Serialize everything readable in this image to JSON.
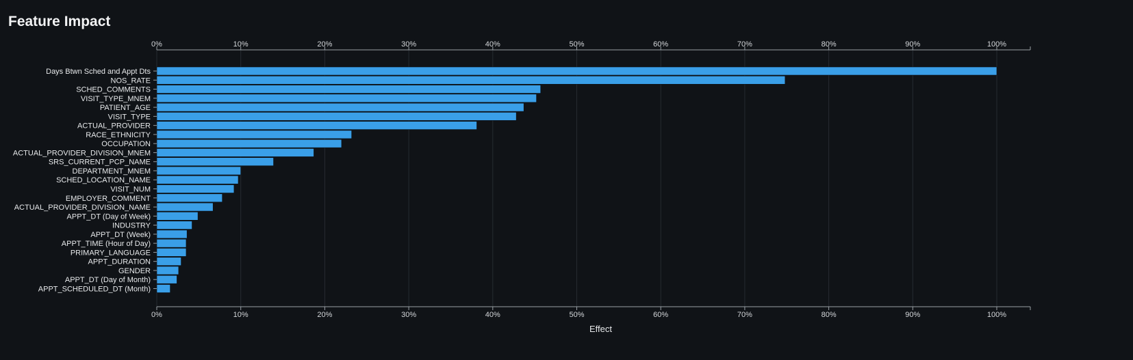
{
  "page": {
    "title": "Feature Impact"
  },
  "chart_data": {
    "type": "bar",
    "orientation": "horizontal",
    "xlabel": "Effect",
    "ylabel": "",
    "xlim": [
      0,
      1.0
    ],
    "xticks": [
      "0%",
      "10%",
      "20%",
      "30%",
      "40%",
      "50%",
      "60%",
      "70%",
      "80%",
      "90%",
      "100%"
    ],
    "grid": true,
    "colors": {
      "bar": "#3a9fe8",
      "background": "#101317"
    },
    "categories": [
      "Days Btwn Sched and Appt Dts",
      "NOS_RATE",
      "SCHED_COMMENTS",
      "VISIT_TYPE_MNEM",
      "PATIENT_AGE",
      "VISIT_TYPE",
      "ACTUAL_PROVIDER",
      "RACE_ETHNICITY",
      "OCCUPATION",
      "ACTUAL_PROVIDER_DIVISION_MNEM",
      "SRS_CURRENT_PCP_NAME",
      "DEPARTMENT_MNEM",
      "SCHED_LOCATION_NAME",
      "VISIT_NUM",
      "EMPLOYER_COMMENT",
      "ACTUAL_PROVIDER_DIVISION_NAME",
      "APPT_DT (Day of Week)",
      "INDUSTRY",
      "APPT_DT (Week)",
      "APPT_TIME (Hour of Day)",
      "PRIMARY_LANGUAGE",
      "APPT_DURATION",
      "GENDER",
      "APPT_DT (Day of Month)",
      "APPT_SCHEDULED_DT (Month)"
    ],
    "values": [
      1.0,
      0.748,
      0.457,
      0.452,
      0.437,
      0.428,
      0.381,
      0.232,
      0.22,
      0.187,
      0.139,
      0.1,
      0.097,
      0.092,
      0.078,
      0.067,
      0.049,
      0.042,
      0.036,
      0.035,
      0.035,
      0.029,
      0.026,
      0.024,
      0.016
    ]
  }
}
